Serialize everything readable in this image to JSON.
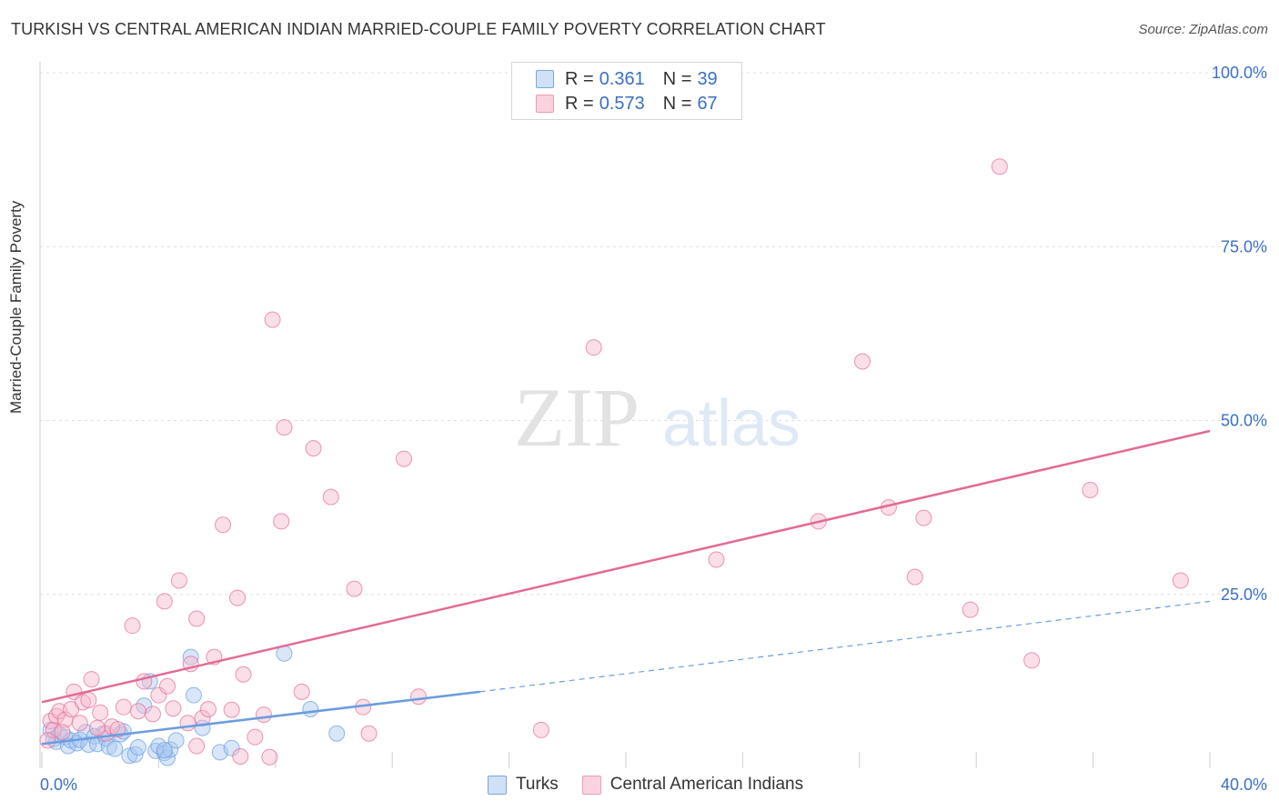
{
  "header": {
    "title": "TURKISH VS CENTRAL AMERICAN INDIAN MARRIED-COUPLE FAMILY POVERTY CORRELATION CHART",
    "source": "Source: ZipAtlas.com"
  },
  "watermark": {
    "zip": "ZIP",
    "atlas": "atlas"
  },
  "legend": {
    "rows": [
      {
        "r_label": "R =",
        "r_value": "0.361",
        "n_label": "N =",
        "n_value": "39",
        "color": "#a9c8f0"
      },
      {
        "r_label": "R =",
        "r_value": "0.573",
        "n_label": "N =",
        "n_value": "67",
        "color": "#f6b8cb"
      }
    ]
  },
  "bottom_legend": {
    "items": [
      {
        "label": "Turks",
        "color": "#a9c8f0"
      },
      {
        "label": "Central American Indians",
        "color": "#f6b8cb"
      }
    ]
  },
  "chart_data": {
    "type": "scatter",
    "title": "TURKISH VS CENTRAL AMERICAN INDIAN MARRIED-COUPLE FAMILY POVERTY CORRELATION CHART",
    "xlabel": "",
    "ylabel": "Married-Couple Family Poverty",
    "xlim": [
      0,
      40
    ],
    "ylim": [
      0,
      100
    ],
    "x_tick_labels": [
      "0.0%",
      "40.0%"
    ],
    "y_tick_labels": [
      "100.0%",
      "75.0%",
      "50.0%",
      "25.0%"
    ],
    "y_ticks": [
      100,
      75,
      50,
      25
    ],
    "grid": true,
    "series": [
      {
        "name": "Turks",
        "color": "#6a9de0",
        "fill": "#a9c8f0",
        "trend": {
          "x0": 0,
          "y0": 3.5,
          "x1": 15,
          "y1": 11,
          "dashed_to_x": 40,
          "dashed_to_y": 24
        },
        "points": [
          [
            0.3,
            5.5
          ],
          [
            0.4,
            4.2
          ],
          [
            0.5,
            3.8
          ],
          [
            0.6,
            4.8
          ],
          [
            0.8,
            4.5
          ],
          [
            0.9,
            3.2
          ],
          [
            1.0,
            4.0
          ],
          [
            1.2,
            3.6
          ],
          [
            1.3,
            4.1
          ],
          [
            1.5,
            5.2
          ],
          [
            1.6,
            3.4
          ],
          [
            1.8,
            4.6
          ],
          [
            1.9,
            3.5
          ],
          [
            2.1,
            5.0
          ],
          [
            2.2,
            4.3
          ],
          [
            2.3,
            3.1
          ],
          [
            2.5,
            2.8
          ],
          [
            2.7,
            4.9
          ],
          [
            2.8,
            5.3
          ],
          [
            3.0,
            1.8
          ],
          [
            3.2,
            2.0
          ],
          [
            3.3,
            3.0
          ],
          [
            3.5,
            9.0
          ],
          [
            3.7,
            12.5
          ],
          [
            3.9,
            2.5
          ],
          [
            4.0,
            3.2
          ],
          [
            4.2,
            2.2
          ],
          [
            4.3,
            1.5
          ],
          [
            4.4,
            2.7
          ],
          [
            4.6,
            4.0
          ],
          [
            5.1,
            16.0
          ],
          [
            5.2,
            10.5
          ],
          [
            5.5,
            5.8
          ],
          [
            6.1,
            2.3
          ],
          [
            6.5,
            2.9
          ],
          [
            8.3,
            16.5
          ],
          [
            9.2,
            8.5
          ],
          [
            10.1,
            5.0
          ],
          [
            4.2,
            2.6
          ]
        ]
      },
      {
        "name": "Central American Indians",
        "color": "#e46a95",
        "fill": "#f6b8cb",
        "trend": {
          "x0": 0,
          "y0": 9.5,
          "x1": 40,
          "y1": 48.5
        },
        "points": [
          [
            0.3,
            6.8
          ],
          [
            0.4,
            5.5
          ],
          [
            0.5,
            7.5
          ],
          [
            0.6,
            8.2
          ],
          [
            0.8,
            7.0
          ],
          [
            1.0,
            8.5
          ],
          [
            1.1,
            11.0
          ],
          [
            1.3,
            6.5
          ],
          [
            1.4,
            9.5
          ],
          [
            1.6,
            9.8
          ],
          [
            1.7,
            12.8
          ],
          [
            2.0,
            8.0
          ],
          [
            2.2,
            5.0
          ],
          [
            2.4,
            6.0
          ],
          [
            2.6,
            5.6
          ],
          [
            2.8,
            8.8
          ],
          [
            3.1,
            20.5
          ],
          [
            3.3,
            8.2
          ],
          [
            3.5,
            12.5
          ],
          [
            3.8,
            7.8
          ],
          [
            4.0,
            10.5
          ],
          [
            4.2,
            24.0
          ],
          [
            4.3,
            11.8
          ],
          [
            4.5,
            8.6
          ],
          [
            4.7,
            27.0
          ],
          [
            5.0,
            6.5
          ],
          [
            5.1,
            15.0
          ],
          [
            5.3,
            3.2
          ],
          [
            5.3,
            21.5
          ],
          [
            5.5,
            7.2
          ],
          [
            5.7,
            8.5
          ],
          [
            5.9,
            16.0
          ],
          [
            6.2,
            35.0
          ],
          [
            6.5,
            8.4
          ],
          [
            6.7,
            24.5
          ],
          [
            6.8,
            1.7
          ],
          [
            6.9,
            13.5
          ],
          [
            7.3,
            4.5
          ],
          [
            7.6,
            7.7
          ],
          [
            7.8,
            1.6
          ],
          [
            7.9,
            64.5
          ],
          [
            8.2,
            35.5
          ],
          [
            8.3,
            49.0
          ],
          [
            8.9,
            11.0
          ],
          [
            9.3,
            46.0
          ],
          [
            9.9,
            39.0
          ],
          [
            10.7,
            25.8
          ],
          [
            11.0,
            8.8
          ],
          [
            11.2,
            5.0
          ],
          [
            12.4,
            44.5
          ],
          [
            12.9,
            10.3
          ],
          [
            17.1,
            5.5
          ],
          [
            18.9,
            60.5
          ],
          [
            23.1,
            30.0
          ],
          [
            26.6,
            35.5
          ],
          [
            28.1,
            58.5
          ],
          [
            29.0,
            37.5
          ],
          [
            29.9,
            27.5
          ],
          [
            30.2,
            36.0
          ],
          [
            31.8,
            22.8
          ],
          [
            32.8,
            86.5
          ],
          [
            33.9,
            15.5
          ],
          [
            35.9,
            40.0
          ],
          [
            39.0,
            27.0
          ],
          [
            0.2,
            4.0
          ],
          [
            0.7,
            5.2
          ],
          [
            1.9,
            5.8
          ]
        ]
      }
    ]
  }
}
